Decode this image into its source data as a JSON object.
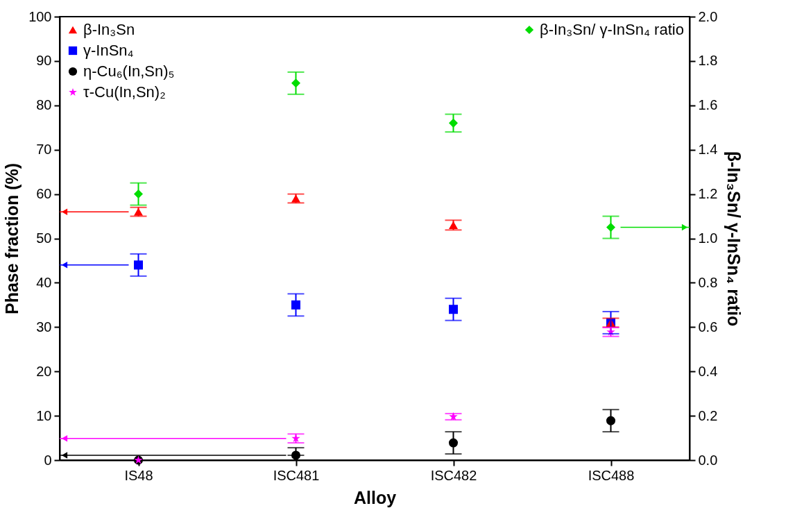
{
  "chart_data": {
    "type": "scatter",
    "xlabel": "Alloy",
    "ylabel": "Phase fraction (%)",
    "y2label": "β-In₃Sn/ γ-InSn₄ ratio",
    "categories": [
      "IS48",
      "ISC481",
      "ISC482",
      "ISC488"
    ],
    "series": [
      {
        "name": "β-In₃Sn",
        "color": "#ff0000",
        "marker": "triangle",
        "values": [
          56,
          59,
          53,
          31
        ],
        "errors": [
          1,
          1,
          1.1,
          1
        ]
      },
      {
        "name": "γ-InSn₄",
        "color": "#0000ff",
        "marker": "square",
        "values": [
          44,
          35,
          34,
          31
        ],
        "errors": [
          2.5,
          2.5,
          2.5,
          2.5
        ]
      },
      {
        "name": "η-Cu₆(In,Sn)₅",
        "color": "#000000",
        "marker": "circle",
        "values": [
          0,
          1.1,
          3.9,
          8.9
        ],
        "errors": [
          null,
          [
            1.1,
            2.8
          ],
          2.5,
          2.5
        ]
      },
      {
        "name": "τ-Cu(In,Sn)₂",
        "color": "#ff00ff",
        "marker": "star",
        "values": [
          0,
          4.9,
          9.8,
          28.9
        ],
        "errors": [
          null,
          1,
          0.7,
          1
        ]
      },
      {
        "name": "β-In₃Sn/ γ-InSn₄ ratio",
        "color": "#00dd00",
        "marker": "diamond",
        "axis": "y2",
        "values": [
          1.2,
          1.7,
          1.52,
          1.05
        ],
        "errors": [
          0.05,
          0.05,
          0.04,
          0.05
        ]
      }
    ],
    "ylim": [
      0,
      100
    ],
    "yticks": [
      0,
      10,
      20,
      30,
      40,
      50,
      60,
      70,
      80,
      90,
      100
    ],
    "y2lim": [
      0,
      2
    ],
    "y2ticks": [
      {
        "value": 0,
        "label": "0.0"
      },
      0.2,
      0.4,
      0.6,
      0.8,
      {
        "value": 1,
        "label": "1.0"
      },
      1.2,
      1.4,
      1.6,
      1.8,
      {
        "value": 2,
        "label": "2.0"
      }
    ],
    "grid": false,
    "legend": "top left"
  }
}
